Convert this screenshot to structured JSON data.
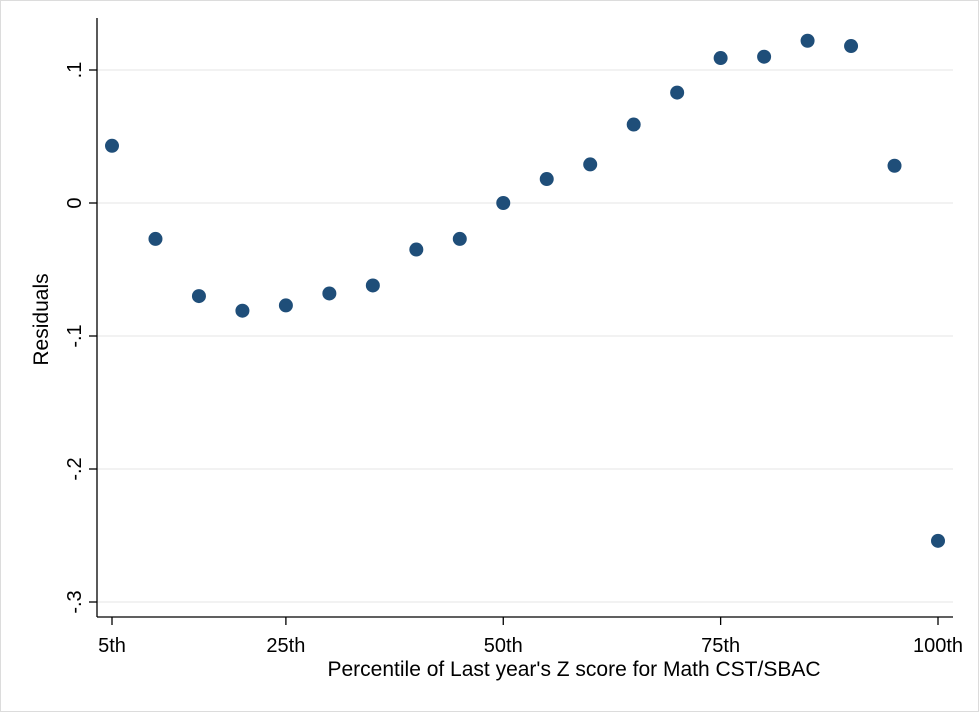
{
  "chart_data": {
    "type": "scatter",
    "xlabel": "Percentile of Last year's Z score for Math CST/SBAC",
    "ylabel": "Residuals",
    "xlim": [
      5,
      100
    ],
    "ylim": [
      -0.3,
      0.13
    ],
    "x_ticks": [
      {
        "value": 5,
        "label": "5th"
      },
      {
        "value": 25,
        "label": "25th"
      },
      {
        "value": 50,
        "label": "50th"
      },
      {
        "value": 75,
        "label": "75th"
      },
      {
        "value": 100,
        "label": "100th"
      }
    ],
    "y_ticks": [
      {
        "value": 0.1,
        "label": ".1"
      },
      {
        "value": 0,
        "label": "0"
      },
      {
        "value": -0.1,
        "label": "-.1"
      },
      {
        "value": -0.2,
        "label": "-.2"
      },
      {
        "value": -0.3,
        "label": "-.3"
      }
    ],
    "grid": true,
    "marker_color": "#1f4e79",
    "points": [
      {
        "x": 5,
        "y": 0.043
      },
      {
        "x": 10,
        "y": -0.027
      },
      {
        "x": 15,
        "y": -0.07
      },
      {
        "x": 20,
        "y": -0.081
      },
      {
        "x": 25,
        "y": -0.077
      },
      {
        "x": 30,
        "y": -0.068
      },
      {
        "x": 35,
        "y": -0.062
      },
      {
        "x": 40,
        "y": -0.035
      },
      {
        "x": 45,
        "y": -0.027
      },
      {
        "x": 50,
        "y": 0.0
      },
      {
        "x": 55,
        "y": 0.018
      },
      {
        "x": 60,
        "y": 0.029
      },
      {
        "x": 65,
        "y": 0.059
      },
      {
        "x": 70,
        "y": 0.083
      },
      {
        "x": 75,
        "y": 0.109
      },
      {
        "x": 80,
        "y": 0.11
      },
      {
        "x": 85,
        "y": 0.122
      },
      {
        "x": 90,
        "y": 0.118
      },
      {
        "x": 95,
        "y": 0.028
      },
      {
        "x": 100,
        "y": -0.254
      }
    ]
  }
}
